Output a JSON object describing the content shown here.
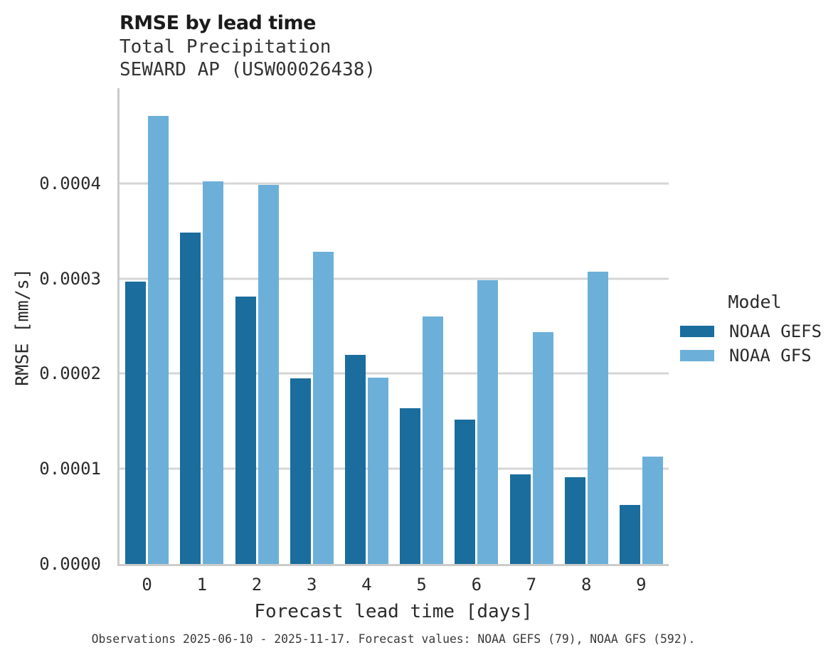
{
  "header": {
    "title": "RMSE by lead time",
    "subtitle_line1": "Total Precipitation",
    "subtitle_line2": "SEWARD AP (USW00026438)"
  },
  "chart_data": {
    "type": "bar",
    "title": "RMSE by lead time",
    "subtitle": "Total Precipitation",
    "station": "SEWARD AP (USW00026438)",
    "xlabel": "Forecast lead time [days]",
    "ylabel": "RMSE [mm/s]",
    "categories": [
      "0",
      "1",
      "2",
      "3",
      "4",
      "5",
      "6",
      "7",
      "8",
      "9"
    ],
    "series": [
      {
        "name": "NOAA GEFS",
        "color": "#1a6d9d",
        "values": [
          0.000297,
          0.000348,
          0.000281,
          0.000195,
          0.00022,
          0.000164,
          0.000152,
          9.4e-05,
          9.1e-05,
          6.2e-05
        ]
      },
      {
        "name": "NOAA GFS",
        "color": "#6cb0d9",
        "values": [
          0.000471,
          0.000402,
          0.000398,
          0.000328,
          0.000196,
          0.00026,
          0.000298,
          0.000244,
          0.000307,
          0.000113
        ]
      }
    ],
    "ylim": [
      0,
      0.0005
    ],
    "yticks": [
      0,
      0.0001,
      0.0002,
      0.0003,
      0.0004
    ],
    "ytick_labels": [
      "0.0000",
      "0.0001",
      "0.0002",
      "0.0003",
      "0.0004"
    ],
    "grid": "horizontal-only",
    "legend_position": "right"
  },
  "legend": {
    "title": "Model",
    "items": [
      {
        "label": "NOAA GEFS",
        "color": "#1a6d9d"
      },
      {
        "label": "NOAA GFS",
        "color": "#6cb0d9"
      }
    ]
  },
  "caption": "Observations 2025-06-10 - 2025-11-17. Forecast values: NOAA GEFS (79), NOAA GFS (592)."
}
